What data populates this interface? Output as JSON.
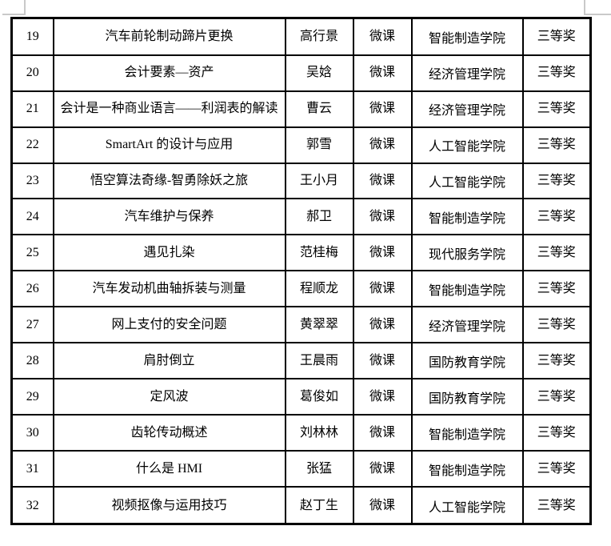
{
  "page": {
    "background_color": "#ffffff",
    "table_border_color": "#000000",
    "crop_mark_color": "#c9c9c9"
  },
  "table": {
    "columns": [
      "number",
      "title",
      "author",
      "type",
      "college",
      "award"
    ],
    "rows": [
      {
        "number": "19",
        "title": "汽车前轮制动蹄片更换",
        "author": "高行景",
        "type": "微课",
        "college": "智能制造学院",
        "award": "三等奖"
      },
      {
        "number": "20",
        "title": "会计要素—资产",
        "author": "吴娢",
        "type": "微课",
        "college": "经济管理学院",
        "award": "三等奖"
      },
      {
        "number": "21",
        "title": "会计是一种商业语言——利润表的解读",
        "author": "曹云",
        "type": "微课",
        "college": "经济管理学院",
        "award": "三等奖"
      },
      {
        "number": "22",
        "title": "SmartArt 的设计与应用",
        "author": "郭雪",
        "type": "微课",
        "college": "人工智能学院",
        "award": "三等奖"
      },
      {
        "number": "23",
        "title": "悟空算法奇缘-智勇除妖之旅",
        "author": "王小月",
        "type": "微课",
        "college": "人工智能学院",
        "award": "三等奖"
      },
      {
        "number": "24",
        "title": "汽车维护与保养",
        "author": "郝卫",
        "type": "微课",
        "college": "智能制造学院",
        "award": "三等奖"
      },
      {
        "number": "25",
        "title": "遇见扎染",
        "author": "范桂梅",
        "type": "微课",
        "college": "现代服务学院",
        "award": "三等奖"
      },
      {
        "number": "26",
        "title": "汽车发动机曲轴拆装与测量",
        "author": "程顺龙",
        "type": "微课",
        "college": "智能制造学院",
        "award": "三等奖"
      },
      {
        "number": "27",
        "title": "网上支付的安全问题",
        "author": "黄翠翠",
        "type": "微课",
        "college": "经济管理学院",
        "award": "三等奖"
      },
      {
        "number": "28",
        "title": "肩肘倒立",
        "author": "王晨雨",
        "type": "微课",
        "college": "国防教育学院",
        "award": "三等奖"
      },
      {
        "number": "29",
        "title": "定风波",
        "author": "葛俊如",
        "type": "微课",
        "college": "国防教育学院",
        "award": "三等奖"
      },
      {
        "number": "30",
        "title": "齿轮传动概述",
        "author": "刘林林",
        "type": "微课",
        "college": "智能制造学院",
        "award": "三等奖"
      },
      {
        "number": "31",
        "title": "什么是 HMI",
        "author": "张猛",
        "type": "微课",
        "college": "智能制造学院",
        "award": "三等奖"
      },
      {
        "number": "32",
        "title": "视频抠像与运用技巧",
        "author": "赵丁生",
        "type": "微课",
        "college": "人工智能学院",
        "award": "三等奖"
      }
    ]
  }
}
